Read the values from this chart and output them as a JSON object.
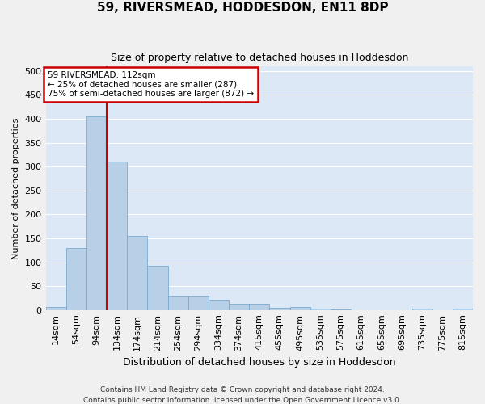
{
  "title": "59, RIVERSMEAD, HODDESDON, EN11 8DP",
  "subtitle": "Size of property relative to detached houses in Hoddesdon",
  "xlabel": "Distribution of detached houses by size in Hoddesdon",
  "ylabel": "Number of detached properties",
  "footer1": "Contains HM Land Registry data © Crown copyright and database right 2024.",
  "footer2": "Contains public sector information licensed under the Open Government Licence v3.0.",
  "bin_labels": [
    "14sqm",
    "54sqm",
    "94sqm",
    "134sqm",
    "174sqm",
    "214sqm",
    "254sqm",
    "294sqm",
    "334sqm",
    "374sqm",
    "415sqm",
    "455sqm",
    "495sqm",
    "535sqm",
    "575sqm",
    "615sqm",
    "655sqm",
    "695sqm",
    "735sqm",
    "775sqm",
    "815sqm"
  ],
  "bar_values": [
    6,
    130,
    405,
    310,
    155,
    93,
    30,
    30,
    21,
    13,
    13,
    5,
    6,
    2,
    1,
    0,
    0,
    0,
    3,
    0,
    2
  ],
  "bar_color": "#b8cfe8",
  "bar_edge_color": "#7aaad0",
  "bg_color": "#dce8f5",
  "grid_color": "#ffffff",
  "red_line_color": "#cc0000",
  "annotation_text": "59 RIVERSMEAD: 112sqm\n← 25% of detached houses are smaller (287)\n75% of semi-detached houses are larger (872) →",
  "annotation_box_color": "#ffffff",
  "annotation_box_edgecolor": "#cc0000",
  "ylim": [
    0,
    510
  ],
  "yticks": [
    0,
    50,
    100,
    150,
    200,
    250,
    300,
    350,
    400,
    450,
    500
  ],
  "title_fontsize": 11,
  "subtitle_fontsize": 9,
  "ylabel_fontsize": 8,
  "xlabel_fontsize": 9,
  "tick_fontsize": 8,
  "annot_fontsize": 7.5,
  "footer_fontsize": 6.5
}
